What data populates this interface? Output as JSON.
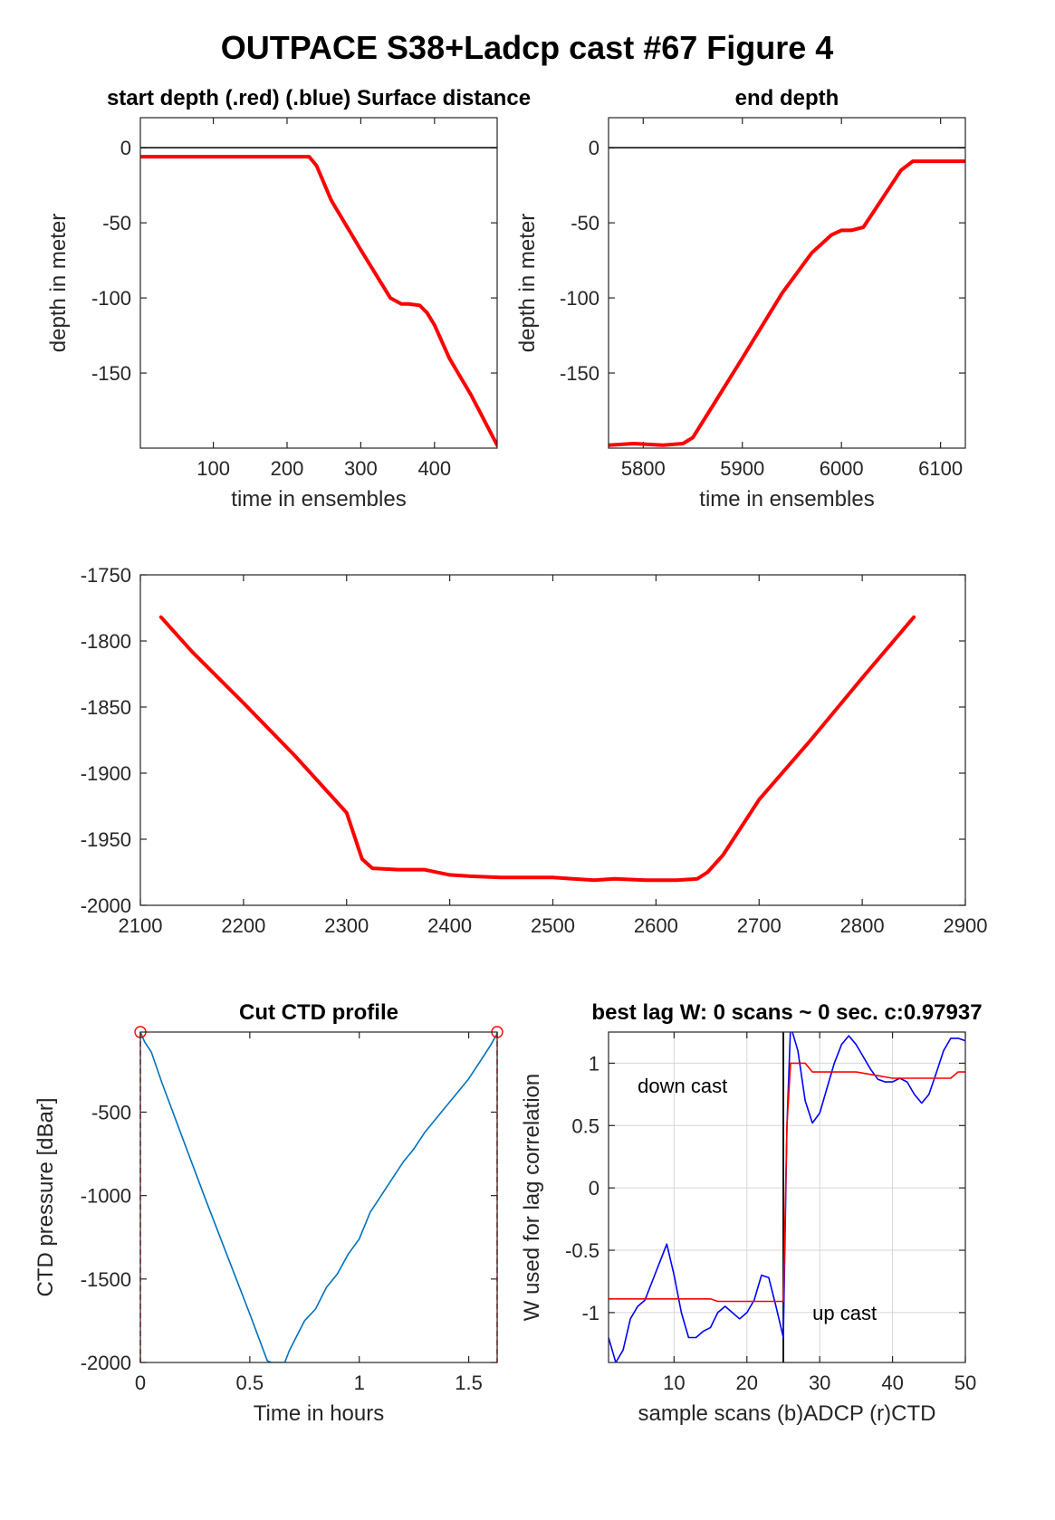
{
  "figure": {
    "title": "OUTPACE S38+Ladcp cast #67   Figure 4"
  },
  "colors": {
    "red": "#ff0000",
    "blue": "#0000ff",
    "ctd": "#0072bd",
    "axis": "#262626",
    "grid": "#d6d6d6"
  },
  "chart_data": [
    {
      "id": "start",
      "type": "line",
      "title": "start depth (.red) (.blue) Surface distance",
      "xlabel": "time in ensembles",
      "ylabel": "depth in meter",
      "xlim": [
        1,
        485
      ],
      "ylim": [
        -200,
        20
      ],
      "xticks": [
        100,
        200,
        300,
        400
      ],
      "yticks": [
        0,
        -50,
        -100,
        -150
      ],
      "grid": false,
      "hline": 0,
      "series": [
        {
          "color": "#ff0000",
          "x": [
            1,
            50,
            100,
            150,
            200,
            230,
            240,
            260,
            300,
            340,
            355,
            365,
            380,
            390,
            400,
            420,
            450,
            485
          ],
          "y": [
            -6,
            -6,
            -6,
            -6,
            -6,
            -6,
            -12,
            -35,
            -68,
            -100,
            -104,
            -104,
            -105,
            -110,
            -118,
            -140,
            -165,
            -198
          ]
        }
      ]
    },
    {
      "id": "end",
      "type": "line",
      "title": "end depth",
      "xlabel": "time in ensembles",
      "ylabel": "depth in meter",
      "xlim": [
        5765,
        6125
      ],
      "ylim": [
        -200,
        20
      ],
      "xticks": [
        5800,
        5900,
        6000,
        6100
      ],
      "yticks": [
        0,
        -50,
        -100,
        -150
      ],
      "grid": false,
      "hline": 0,
      "series": [
        {
          "color": "#ff0000",
          "x": [
            5765,
            5790,
            5820,
            5840,
            5850,
            5870,
            5900,
            5940,
            5970,
            5990,
            6000,
            6010,
            6022,
            6040,
            6060,
            6072,
            6100,
            6125
          ],
          "y": [
            -198,
            -197,
            -198,
            -197,
            -193,
            -172,
            -140,
            -97,
            -70,
            -58,
            -55,
            -55,
            -53,
            -35,
            -15,
            -9,
            -9,
            -9
          ]
        }
      ]
    },
    {
      "id": "bottom",
      "type": "line",
      "title": "",
      "xlabel": "",
      "ylabel": "",
      "xlim": [
        2100,
        2900
      ],
      "ylim": [
        -2000,
        -1750
      ],
      "xticks": [
        2100,
        2200,
        2300,
        2400,
        2500,
        2600,
        2700,
        2800,
        2900
      ],
      "yticks": [
        -1750,
        -1800,
        -1850,
        -1900,
        -1950,
        -2000
      ],
      "grid": false,
      "series": [
        {
          "color": "#ff0000",
          "x": [
            2120,
            2150,
            2200,
            2250,
            2300,
            2315,
            2325,
            2350,
            2375,
            2400,
            2420,
            2450,
            2500,
            2540,
            2560,
            2590,
            2620,
            2640,
            2650,
            2665,
            2700,
            2750,
            2800,
            2850
          ],
          "y": [
            -1782,
            -1808,
            -1847,
            -1887,
            -1930,
            -1965,
            -1972,
            -1973,
            -1973,
            -1977,
            -1978,
            -1979,
            -1979,
            -1981,
            -1980,
            -1981,
            -1981,
            -1980,
            -1975,
            -1962,
            -1920,
            -1875,
            -1828,
            -1782
          ]
        }
      ]
    },
    {
      "id": "ctd",
      "type": "line",
      "title": "Cut CTD profile",
      "xlabel": "Time in hours",
      "ylabel": "CTD pressure [dBar]",
      "xlim": [
        0,
        1.63
      ],
      "ylim": [
        -2000,
        -20
      ],
      "xticks": [
        0,
        0.5,
        1,
        1.5
      ],
      "xtick_labels": [
        "0",
        "0.5",
        "1",
        "1.5"
      ],
      "yticks": [
        -500,
        -1000,
        -1500,
        -2000
      ],
      "grid": false,
      "vlines": [
        0,
        1.63
      ],
      "markers": [
        {
          "x": 0,
          "y": -20
        },
        {
          "x": 1.63,
          "y": -20
        }
      ],
      "series": [
        {
          "color": "#0072bd",
          "x": [
            0,
            0.02,
            0.05,
            0.1,
            0.2,
            0.3,
            0.4,
            0.5,
            0.58,
            0.6,
            0.66,
            0.68,
            0.75,
            0.8,
            0.85,
            0.9,
            0.95,
            1.0,
            1.05,
            1.1,
            1.15,
            1.2,
            1.25,
            1.3,
            1.35,
            1.4,
            1.45,
            1.5,
            1.55,
            1.6,
            1.63
          ],
          "y": [
            -20,
            -80,
            -140,
            -330,
            -680,
            -1030,
            -1370,
            -1710,
            -1990,
            -2000,
            -2000,
            -1930,
            -1750,
            -1680,
            -1550,
            -1470,
            -1350,
            -1260,
            -1100,
            -1000,
            -900,
            -800,
            -720,
            -620,
            -540,
            -460,
            -380,
            -300,
            -200,
            -100,
            -30
          ]
        }
      ]
    },
    {
      "id": "lag",
      "type": "line",
      "title": "best lag W: 0 scans ~ 0 sec.  c:0.97937",
      "xlabel": "sample scans (b)ADCP (r)CTD",
      "ylabel": "W used for lag correlation",
      "xlim": [
        1,
        50
      ],
      "ylim": [
        -1.4,
        1.25
      ],
      "xticks": [
        10,
        20,
        30,
        40,
        50
      ],
      "yticks": [
        1,
        0.5,
        0,
        -0.5,
        -1
      ],
      "ytick_labels": [
        "1",
        "0.5",
        "0",
        "-0.5",
        "-1"
      ],
      "grid": true,
      "vline": 25,
      "annotations": [
        {
          "text": "down cast",
          "x": 5,
          "y": 0.82
        },
        {
          "text": "up cast",
          "x": 29,
          "y": -1.0
        }
      ],
      "series": [
        {
          "color": "#0000ff",
          "x": [
            1,
            2,
            3,
            4,
            5,
            6,
            7,
            8,
            9,
            10,
            11,
            12,
            13,
            14,
            15,
            16,
            17,
            18,
            19,
            20,
            21,
            22,
            23,
            24,
            25,
            25.5,
            26,
            27,
            28,
            29,
            30,
            31,
            32,
            33,
            34,
            35,
            36,
            37,
            38,
            39,
            40,
            41,
            42,
            43,
            44,
            45,
            46,
            47,
            48,
            49,
            50
          ],
          "y": [
            -1.2,
            -1.4,
            -1.3,
            -1.05,
            -0.95,
            -0.9,
            -0.75,
            -0.6,
            -0.45,
            -0.7,
            -1.0,
            -1.2,
            -1.2,
            -1.15,
            -1.12,
            -1.0,
            -0.95,
            -1.0,
            -1.05,
            -1.0,
            -0.9,
            -0.7,
            -0.72,
            -0.95,
            -1.2,
            0.5,
            1.3,
            1.1,
            0.7,
            0.52,
            0.6,
            0.8,
            1.0,
            1.15,
            1.22,
            1.15,
            1.05,
            0.95,
            0.87,
            0.85,
            0.85,
            0.88,
            0.85,
            0.75,
            0.68,
            0.75,
            0.92,
            1.1,
            1.2,
            1.2,
            1.18
          ]
        },
        {
          "color": "#ff0000",
          "x": [
            1,
            5,
            10,
            15,
            16,
            20,
            24,
            25,
            25.5,
            26,
            28,
            29,
            30,
            35,
            40,
            45,
            48,
            49,
            50
          ],
          "y": [
            -0.89,
            -0.89,
            -0.89,
            -0.89,
            -0.91,
            -0.91,
            -0.91,
            -0.91,
            0.5,
            1.0,
            1.0,
            0.93,
            0.93,
            0.93,
            0.88,
            0.88,
            0.88,
            0.93,
            0.93
          ]
        }
      ]
    }
  ]
}
